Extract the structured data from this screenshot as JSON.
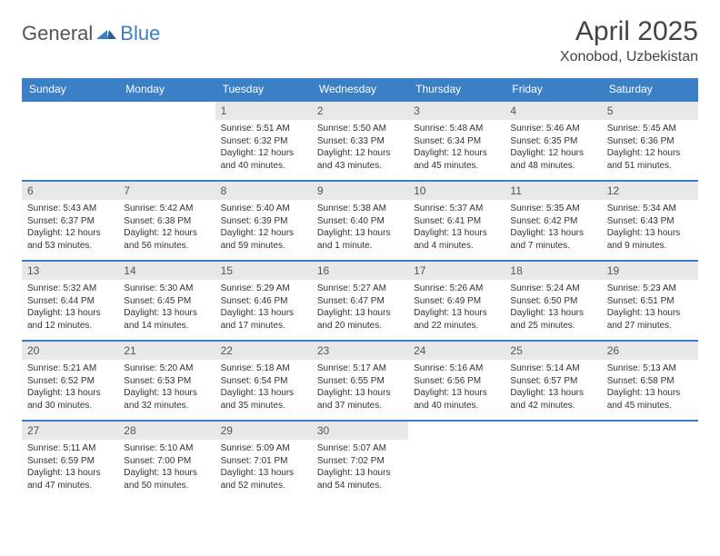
{
  "logo": {
    "text1": "General",
    "text2": "Blue"
  },
  "title": "April 2025",
  "subtitle": "Xonobod, Uzbekistan",
  "colors": {
    "primary": "#3b7fc4",
    "header_text": "#ffffff",
    "daynum_bg": "#e8e8e8",
    "text": "#333333",
    "bg": "#ffffff"
  },
  "day_headers": [
    "Sunday",
    "Monday",
    "Tuesday",
    "Wednesday",
    "Thursday",
    "Friday",
    "Saturday"
  ],
  "weeks": [
    [
      null,
      null,
      {
        "n": "1",
        "sunrise": "Sunrise: 5:51 AM",
        "sunset": "Sunset: 6:32 PM",
        "daylight1": "Daylight: 12 hours",
        "daylight2": "and 40 minutes."
      },
      {
        "n": "2",
        "sunrise": "Sunrise: 5:50 AM",
        "sunset": "Sunset: 6:33 PM",
        "daylight1": "Daylight: 12 hours",
        "daylight2": "and 43 minutes."
      },
      {
        "n": "3",
        "sunrise": "Sunrise: 5:48 AM",
        "sunset": "Sunset: 6:34 PM",
        "daylight1": "Daylight: 12 hours",
        "daylight2": "and 45 minutes."
      },
      {
        "n": "4",
        "sunrise": "Sunrise: 5:46 AM",
        "sunset": "Sunset: 6:35 PM",
        "daylight1": "Daylight: 12 hours",
        "daylight2": "and 48 minutes."
      },
      {
        "n": "5",
        "sunrise": "Sunrise: 5:45 AM",
        "sunset": "Sunset: 6:36 PM",
        "daylight1": "Daylight: 12 hours",
        "daylight2": "and 51 minutes."
      }
    ],
    [
      {
        "n": "6",
        "sunrise": "Sunrise: 5:43 AM",
        "sunset": "Sunset: 6:37 PM",
        "daylight1": "Daylight: 12 hours",
        "daylight2": "and 53 minutes."
      },
      {
        "n": "7",
        "sunrise": "Sunrise: 5:42 AM",
        "sunset": "Sunset: 6:38 PM",
        "daylight1": "Daylight: 12 hours",
        "daylight2": "and 56 minutes."
      },
      {
        "n": "8",
        "sunrise": "Sunrise: 5:40 AM",
        "sunset": "Sunset: 6:39 PM",
        "daylight1": "Daylight: 12 hours",
        "daylight2": "and 59 minutes."
      },
      {
        "n": "9",
        "sunrise": "Sunrise: 5:38 AM",
        "sunset": "Sunset: 6:40 PM",
        "daylight1": "Daylight: 13 hours",
        "daylight2": "and 1 minute."
      },
      {
        "n": "10",
        "sunrise": "Sunrise: 5:37 AM",
        "sunset": "Sunset: 6:41 PM",
        "daylight1": "Daylight: 13 hours",
        "daylight2": "and 4 minutes."
      },
      {
        "n": "11",
        "sunrise": "Sunrise: 5:35 AM",
        "sunset": "Sunset: 6:42 PM",
        "daylight1": "Daylight: 13 hours",
        "daylight2": "and 7 minutes."
      },
      {
        "n": "12",
        "sunrise": "Sunrise: 5:34 AM",
        "sunset": "Sunset: 6:43 PM",
        "daylight1": "Daylight: 13 hours",
        "daylight2": "and 9 minutes."
      }
    ],
    [
      {
        "n": "13",
        "sunrise": "Sunrise: 5:32 AM",
        "sunset": "Sunset: 6:44 PM",
        "daylight1": "Daylight: 13 hours",
        "daylight2": "and 12 minutes."
      },
      {
        "n": "14",
        "sunrise": "Sunrise: 5:30 AM",
        "sunset": "Sunset: 6:45 PM",
        "daylight1": "Daylight: 13 hours",
        "daylight2": "and 14 minutes."
      },
      {
        "n": "15",
        "sunrise": "Sunrise: 5:29 AM",
        "sunset": "Sunset: 6:46 PM",
        "daylight1": "Daylight: 13 hours",
        "daylight2": "and 17 minutes."
      },
      {
        "n": "16",
        "sunrise": "Sunrise: 5:27 AM",
        "sunset": "Sunset: 6:47 PM",
        "daylight1": "Daylight: 13 hours",
        "daylight2": "and 20 minutes."
      },
      {
        "n": "17",
        "sunrise": "Sunrise: 5:26 AM",
        "sunset": "Sunset: 6:49 PM",
        "daylight1": "Daylight: 13 hours",
        "daylight2": "and 22 minutes."
      },
      {
        "n": "18",
        "sunrise": "Sunrise: 5:24 AM",
        "sunset": "Sunset: 6:50 PM",
        "daylight1": "Daylight: 13 hours",
        "daylight2": "and 25 minutes."
      },
      {
        "n": "19",
        "sunrise": "Sunrise: 5:23 AM",
        "sunset": "Sunset: 6:51 PM",
        "daylight1": "Daylight: 13 hours",
        "daylight2": "and 27 minutes."
      }
    ],
    [
      {
        "n": "20",
        "sunrise": "Sunrise: 5:21 AM",
        "sunset": "Sunset: 6:52 PM",
        "daylight1": "Daylight: 13 hours",
        "daylight2": "and 30 minutes."
      },
      {
        "n": "21",
        "sunrise": "Sunrise: 5:20 AM",
        "sunset": "Sunset: 6:53 PM",
        "daylight1": "Daylight: 13 hours",
        "daylight2": "and 32 minutes."
      },
      {
        "n": "22",
        "sunrise": "Sunrise: 5:18 AM",
        "sunset": "Sunset: 6:54 PM",
        "daylight1": "Daylight: 13 hours",
        "daylight2": "and 35 minutes."
      },
      {
        "n": "23",
        "sunrise": "Sunrise: 5:17 AM",
        "sunset": "Sunset: 6:55 PM",
        "daylight1": "Daylight: 13 hours",
        "daylight2": "and 37 minutes."
      },
      {
        "n": "24",
        "sunrise": "Sunrise: 5:16 AM",
        "sunset": "Sunset: 6:56 PM",
        "daylight1": "Daylight: 13 hours",
        "daylight2": "and 40 minutes."
      },
      {
        "n": "25",
        "sunrise": "Sunrise: 5:14 AM",
        "sunset": "Sunset: 6:57 PM",
        "daylight1": "Daylight: 13 hours",
        "daylight2": "and 42 minutes."
      },
      {
        "n": "26",
        "sunrise": "Sunrise: 5:13 AM",
        "sunset": "Sunset: 6:58 PM",
        "daylight1": "Daylight: 13 hours",
        "daylight2": "and 45 minutes."
      }
    ],
    [
      {
        "n": "27",
        "sunrise": "Sunrise: 5:11 AM",
        "sunset": "Sunset: 6:59 PM",
        "daylight1": "Daylight: 13 hours",
        "daylight2": "and 47 minutes."
      },
      {
        "n": "28",
        "sunrise": "Sunrise: 5:10 AM",
        "sunset": "Sunset: 7:00 PM",
        "daylight1": "Daylight: 13 hours",
        "daylight2": "and 50 minutes."
      },
      {
        "n": "29",
        "sunrise": "Sunrise: 5:09 AM",
        "sunset": "Sunset: 7:01 PM",
        "daylight1": "Daylight: 13 hours",
        "daylight2": "and 52 minutes."
      },
      {
        "n": "30",
        "sunrise": "Sunrise: 5:07 AM",
        "sunset": "Sunset: 7:02 PM",
        "daylight1": "Daylight: 13 hours",
        "daylight2": "and 54 minutes."
      },
      null,
      null,
      null
    ]
  ]
}
